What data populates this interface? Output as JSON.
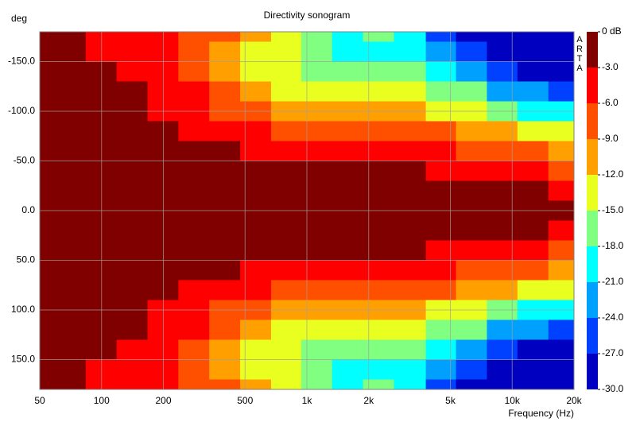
{
  "chart_data": {
    "type": "heatmap",
    "title": "Directivity sonogram",
    "y_label": "deg",
    "x_label": "Frequency (Hz)",
    "watermark": "ARTA",
    "log_x": true,
    "grid": true,
    "xlim": [
      50,
      20000
    ],
    "xticks": [
      50,
      100,
      200,
      500,
      {
        "value": 1000,
        "label": "1k"
      },
      {
        "value": 2000,
        "label": "2k"
      },
      {
        "value": 5000,
        "label": "5k"
      },
      {
        "value": 10000,
        "label": "10k"
      },
      {
        "value": 20000,
        "label": "20k"
      }
    ],
    "ylim": [
      -180,
      180
    ],
    "yticks": [
      {
        "value": -150,
        "label": "-150.0"
      },
      {
        "value": -100,
        "label": "-100.0"
      },
      {
        "value": -50,
        "label": "-50.0"
      },
      {
        "value": 0,
        "label": "0.0"
      },
      {
        "value": 50,
        "label": "50.0"
      },
      {
        "value": 100,
        "label": "100.0"
      },
      {
        "value": 150,
        "label": "150.0"
      }
    ],
    "x": [
      50,
      70,
      100,
      140,
      200,
      280,
      400,
      560,
      800,
      1100,
      1600,
      2200,
      3200,
      4500,
      6300,
      9000,
      12500,
      18000
    ],
    "y": [
      -180,
      -160,
      -140,
      -120,
      -100,
      -80,
      -60,
      -40,
      -20,
      0,
      20,
      40,
      60,
      80,
      100,
      120,
      140,
      160,
      180
    ],
    "z": [
      [
        -1,
        -2,
        -4,
        -4,
        -5,
        -6,
        -7,
        -10,
        -12,
        -15,
        -18,
        -17,
        -19,
        -25,
        -27,
        -29,
        -29,
        -29
      ],
      [
        -1,
        -1,
        -3,
        -4,
        -5,
        -7,
        -9,
        -12,
        -14,
        -17,
        -20,
        -18,
        -18,
        -22,
        -25,
        -28,
        -28,
        -29
      ],
      [
        -1,
        -1,
        -2,
        -3,
        -4,
        -7,
        -10,
        -13,
        -14,
        -16,
        -17,
        -17,
        -16,
        -20,
        -22,
        -25,
        -27,
        -28
      ],
      [
        -1,
        -1,
        -2,
        -2,
        -4,
        -5,
        -8,
        -11,
        -13,
        -14,
        -14,
        -14,
        -13,
        -16,
        -17,
        -21,
        -23,
        -25
      ],
      [
        -1,
        -1,
        -2,
        -2,
        -3,
        -4,
        -6,
        -8,
        -10,
        -11,
        -11,
        -11,
        -10,
        -12,
        -13,
        -16,
        -18,
        -20
      ],
      [
        -1,
        -1,
        -1,
        -2,
        -2,
        -3,
        -4,
        -5,
        -7,
        -8,
        -8,
        -8,
        -7,
        -8,
        -9,
        -11,
        -12,
        -14
      ],
      [
        -1,
        -1,
        -1,
        -1,
        -1,
        -2,
        -2,
        -4,
        -4,
        -4,
        -5,
        -5,
        -3,
        -5,
        -6,
        -7,
        -8,
        -9
      ],
      [
        -1,
        -1,
        -1,
        -1,
        -1,
        -1,
        -1,
        -2,
        -2,
        -2,
        -2,
        -2,
        -1,
        -3,
        -3,
        -4,
        -5,
        -6
      ],
      [
        -1,
        -1,
        -1,
        -1,
        -1,
        -1,
        -1,
        -1,
        -1,
        -1,
        -1,
        -1,
        -1,
        -1,
        -2,
        -2,
        -2,
        -3
      ],
      [
        -1,
        -1,
        -1,
        -1,
        -1,
        -1,
        -1,
        -1,
        -1,
        -1,
        -1,
        -1,
        -1,
        -1,
        -1,
        -1,
        -2,
        -2
      ],
      [
        -1,
        -1,
        -1,
        -1,
        -1,
        -1,
        -1,
        -1,
        -1,
        -1,
        -1,
        -1,
        -1,
        -1,
        -2,
        -2,
        -2,
        -3
      ],
      [
        -1,
        -1,
        -1,
        -1,
        -1,
        -1,
        -1,
        -2,
        -2,
        -2,
        -2,
        -2,
        -1,
        -3,
        -3,
        -4,
        -5,
        -6
      ],
      [
        -1,
        -1,
        -1,
        -1,
        -1,
        -2,
        -2,
        -4,
        -4,
        -4,
        -5,
        -5,
        -3,
        -5,
        -6,
        -7,
        -8,
        -9
      ],
      [
        -1,
        -1,
        -1,
        -2,
        -2,
        -3,
        -4,
        -5,
        -7,
        -8,
        -8,
        -8,
        -7,
        -8,
        -9,
        -11,
        -12,
        -14
      ],
      [
        -1,
        -1,
        -2,
        -2,
        -3,
        -4,
        -6,
        -8,
        -10,
        -11,
        -11,
        -11,
        -10,
        -12,
        -13,
        -16,
        -18,
        -20
      ],
      [
        -1,
        -1,
        -2,
        -2,
        -4,
        -5,
        -8,
        -11,
        -13,
        -14,
        -14,
        -14,
        -13,
        -16,
        -17,
        -21,
        -23,
        -25
      ],
      [
        -1,
        -1,
        -2,
        -3,
        -4,
        -7,
        -10,
        -13,
        -14,
        -16,
        -17,
        -17,
        -16,
        -20,
        -22,
        -25,
        -27,
        -28
      ],
      [
        -1,
        -1,
        -3,
        -4,
        -5,
        -7,
        -9,
        -12,
        -14,
        -17,
        -20,
        -18,
        -18,
        -22,
        -25,
        -28,
        -28,
        -29
      ],
      [
        -1,
        -2,
        -4,
        -4,
        -5,
        -6,
        -7,
        -10,
        -12,
        -15,
        -18,
        -17,
        -19,
        -25,
        -27,
        -29,
        -29,
        -29
      ]
    ],
    "colorbar": {
      "clim": [
        -30,
        0
      ],
      "ticks": [
        {
          "value": 0,
          "label": "0 dB"
        },
        {
          "value": -3,
          "label": "-3.0"
        },
        {
          "value": -6,
          "label": "-6.0"
        },
        {
          "value": -9,
          "label": "-9.0"
        },
        {
          "value": -12,
          "label": "-12.0"
        },
        {
          "value": -15,
          "label": "-15.0"
        },
        {
          "value": -18,
          "label": "-18.0"
        },
        {
          "value": -21,
          "label": "-21.0"
        },
        {
          "value": -24,
          "label": "-24.0"
        },
        {
          "value": -27,
          "label": "-27.0"
        },
        {
          "value": -30,
          "label": "-30.0"
        }
      ],
      "colors": [
        "#800000",
        "#ff0000",
        "#ff5000",
        "#ffa000",
        "#e8ff20",
        "#80ff80",
        "#00ffff",
        "#00a0ff",
        "#0040ff",
        "#0000c0"
      ]
    }
  }
}
